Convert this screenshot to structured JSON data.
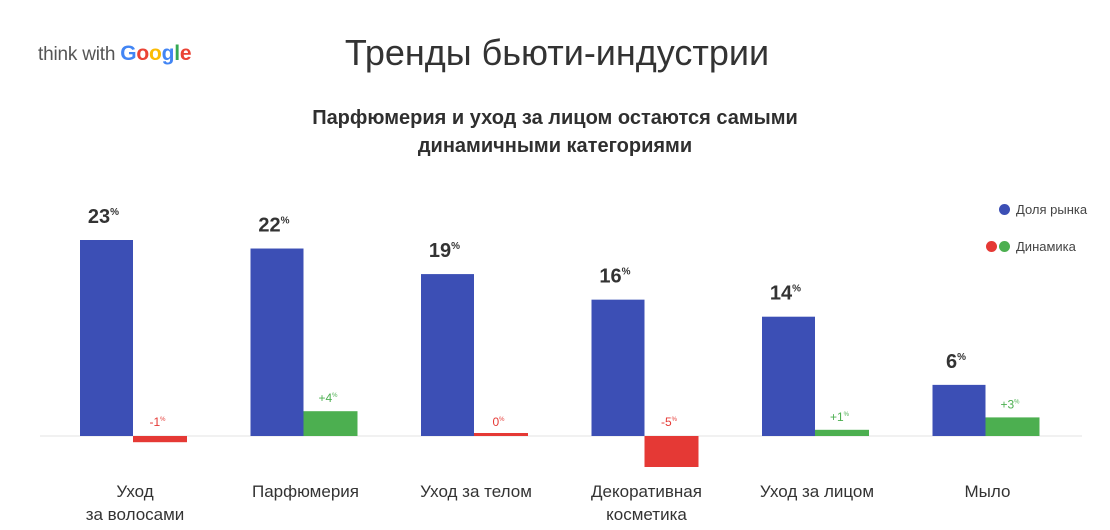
{
  "brand": {
    "think_with": "think with",
    "google_letters": [
      "G",
      "o",
      "o",
      "g",
      "l",
      "e"
    ]
  },
  "page_title": "Тренды бьюти-индустрии",
  "subtitle_lines": [
    "Парфюмерия и уход за лицом остаются самыми",
    "динамичными категориями"
  ],
  "legend": [
    {
      "label": "Доля рынка",
      "colors": [
        "#3c4fb5"
      ]
    },
    {
      "label": "Динамика",
      "colors": [
        "#e53935",
        "#4caf50"
      ]
    }
  ],
  "chart_data": {
    "type": "bar",
    "categories": [
      [
        "Уход",
        "за волосами"
      ],
      [
        "Парфюмерия"
      ],
      [
        "Уход за телом"
      ],
      [
        "Декоративная",
        "косметика"
      ],
      [
        "Уход за лицом"
      ],
      [
        "Мыло"
      ]
    ],
    "series": [
      {
        "name": "Доля рынка",
        "values": [
          23,
          22,
          19,
          16,
          14,
          6
        ],
        "labels": [
          "23",
          "22",
          "19",
          "16",
          "14",
          "6"
        ],
        "color": "#3c4fb5"
      },
      {
        "name": "Динамика",
        "values": [
          -1,
          4,
          0,
          -5,
          1,
          3
        ],
        "labels": [
          "-1",
          "+4",
          "0",
          "-5",
          "+1",
          "+3"
        ],
        "positive_color": "#4caf50",
        "negative_color": "#e53935"
      }
    ],
    "unit": "%",
    "ylim": [
      -5,
      23
    ],
    "grid": false,
    "legend_position": "top-right"
  }
}
